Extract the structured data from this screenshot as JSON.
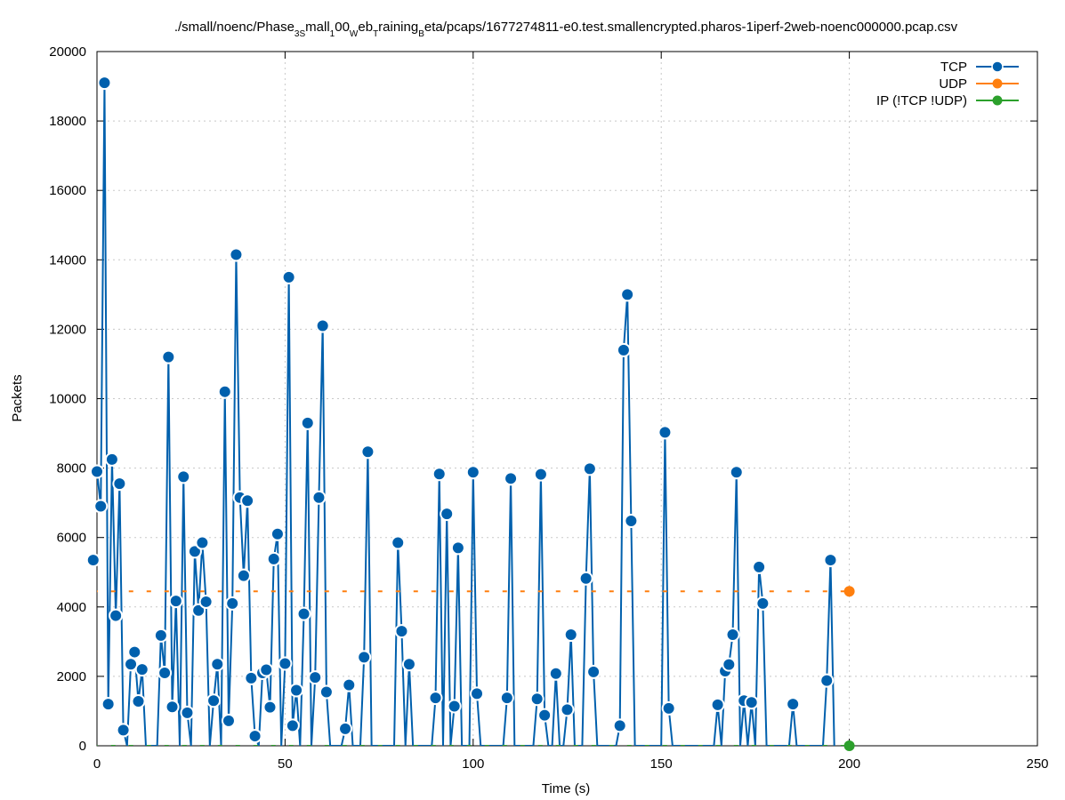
{
  "chart_data": {
    "type": "line",
    "title": "./small/noenc/Phase3Small100WebTrainingBeta/pcaps/1677274811-e0.test.smallencrypted.pharos-1iperf-2web-noenc000000.pcap.csv",
    "title_parts": {
      "t1": "./small/noenc/Phase",
      "s1": "3S",
      "t2": "mall",
      "s2": "1",
      "t3": "00",
      "s3": "W",
      "t4": "eb",
      "s4": "T",
      "t5": "raining",
      "s5": "B",
      "t6": "eta/pcaps/1677274811-e0.test.smallencrypted.pharos-1iperf-2web-noenc000000.pcap.csv"
    },
    "xlabel": "Time (s)",
    "ylabel": "Packets",
    "xlim": [
      0,
      250
    ],
    "ylim": [
      0,
      20000
    ],
    "xticks": [
      0,
      50,
      100,
      150,
      200,
      250
    ],
    "yticks": [
      0,
      2000,
      4000,
      6000,
      8000,
      10000,
      12000,
      14000,
      16000,
      18000,
      20000
    ],
    "grid": true,
    "legend_position": "top-right",
    "series": [
      {
        "name": "TCP",
        "color": "#0060ad",
        "style": "line-points",
        "points": [
          [
            -1,
            5350
          ],
          [
            0,
            7900
          ],
          [
            1,
            6900
          ],
          [
            2,
            19100
          ],
          [
            3,
            1200
          ],
          [
            4,
            8250
          ],
          [
            5,
            3750
          ],
          [
            6,
            7550
          ],
          [
            7,
            450
          ],
          [
            8,
            0
          ],
          [
            9,
            2350
          ],
          [
            10,
            2700
          ],
          [
            11,
            1280
          ],
          [
            12,
            2200
          ],
          [
            13,
            0
          ],
          [
            14,
            0
          ],
          [
            15,
            0
          ],
          [
            16,
            0
          ],
          [
            17,
            3180
          ],
          [
            18,
            2100
          ],
          [
            19,
            11200
          ],
          [
            20,
            1120
          ],
          [
            21,
            4170
          ],
          [
            22,
            0
          ],
          [
            23,
            7750
          ],
          [
            24,
            950
          ],
          [
            25,
            0
          ],
          [
            26,
            5600
          ],
          [
            27,
            3900
          ],
          [
            28,
            5850
          ],
          [
            29,
            4150
          ],
          [
            30,
            0
          ],
          [
            31,
            1300
          ],
          [
            32,
            2350
          ],
          [
            33,
            0
          ],
          [
            34,
            10200
          ],
          [
            35,
            720
          ],
          [
            36,
            4100
          ],
          [
            37,
            14150
          ],
          [
            38,
            7150
          ],
          [
            39,
            4900
          ],
          [
            40,
            7060
          ],
          [
            41,
            1950
          ],
          [
            42,
            280
          ],
          [
            43,
            0
          ],
          [
            44,
            2100
          ],
          [
            45,
            2190
          ],
          [
            46,
            1110
          ],
          [
            47,
            5380
          ],
          [
            48,
            6100
          ],
          [
            49,
            0
          ],
          [
            50,
            2370
          ],
          [
            51,
            13500
          ],
          [
            52,
            580
          ],
          [
            53,
            1600
          ],
          [
            54,
            0
          ],
          [
            55,
            3800
          ],
          [
            56,
            9300
          ],
          [
            57,
            0
          ],
          [
            58,
            1970
          ],
          [
            59,
            7150
          ],
          [
            60,
            12100
          ],
          [
            61,
            1550
          ],
          [
            62,
            0
          ],
          [
            63,
            0
          ],
          [
            64,
            0
          ],
          [
            65,
            0
          ],
          [
            66,
            490
          ],
          [
            67,
            1750
          ],
          [
            68,
            0
          ],
          [
            69,
            0
          ],
          [
            70,
            0
          ],
          [
            71,
            2550
          ],
          [
            72,
            8470
          ],
          [
            73,
            0
          ],
          [
            74,
            0
          ],
          [
            75,
            0
          ],
          [
            76,
            0
          ],
          [
            77,
            0
          ],
          [
            78,
            0
          ],
          [
            79,
            0
          ],
          [
            80,
            5850
          ],
          [
            81,
            3300
          ],
          [
            82,
            0
          ],
          [
            83,
            2350
          ],
          [
            84,
            0
          ],
          [
            85,
            0
          ],
          [
            86,
            0
          ],
          [
            87,
            0
          ],
          [
            88,
            0
          ],
          [
            89,
            0
          ],
          [
            90,
            1380
          ],
          [
            91,
            7830
          ],
          [
            92,
            0
          ],
          [
            93,
            6680
          ],
          [
            94,
            0
          ],
          [
            95,
            1140
          ],
          [
            96,
            5700
          ],
          [
            97,
            0
          ],
          [
            98,
            0
          ],
          [
            99,
            0
          ],
          [
            100,
            7880
          ],
          [
            101,
            1500
          ],
          [
            102,
            0
          ],
          [
            103,
            0
          ],
          [
            104,
            0
          ],
          [
            105,
            0
          ],
          [
            106,
            0
          ],
          [
            107,
            0
          ],
          [
            108,
            0
          ],
          [
            109,
            1380
          ],
          [
            110,
            7700
          ],
          [
            111,
            0
          ],
          [
            112,
            0
          ],
          [
            113,
            0
          ],
          [
            114,
            0
          ],
          [
            115,
            0
          ],
          [
            116,
            0
          ],
          [
            117,
            1350
          ],
          [
            118,
            7820
          ],
          [
            119,
            880
          ],
          [
            120,
            0
          ],
          [
            121,
            0
          ],
          [
            122,
            2080
          ],
          [
            123,
            0
          ],
          [
            124,
            0
          ],
          [
            125,
            1040
          ],
          [
            126,
            3200
          ],
          [
            127,
            0
          ],
          [
            128,
            0
          ],
          [
            129,
            0
          ],
          [
            130,
            4820
          ],
          [
            131,
            7980
          ],
          [
            132,
            2130
          ],
          [
            133,
            0
          ],
          [
            134,
            0
          ],
          [
            135,
            0
          ],
          [
            136,
            0
          ],
          [
            137,
            0
          ],
          [
            138,
            0
          ],
          [
            139,
            580
          ],
          [
            140,
            11400
          ],
          [
            141,
            13000
          ],
          [
            142,
            6480
          ],
          [
            143,
            0
          ],
          [
            144,
            0
          ],
          [
            145,
            0
          ],
          [
            146,
            0
          ],
          [
            147,
            0
          ],
          [
            148,
            0
          ],
          [
            149,
            0
          ],
          [
            150,
            0
          ],
          [
            151,
            9030
          ],
          [
            152,
            1080
          ],
          [
            153,
            0
          ],
          [
            154,
            0
          ],
          [
            155,
            0
          ],
          [
            156,
            0
          ],
          [
            157,
            0
          ],
          [
            158,
            0
          ],
          [
            159,
            0
          ],
          [
            160,
            0
          ],
          [
            161,
            0
          ],
          [
            162,
            0
          ],
          [
            163,
            0
          ],
          [
            164,
            0
          ],
          [
            165,
            1180
          ],
          [
            166,
            0
          ],
          [
            167,
            2150
          ],
          [
            168,
            2340
          ],
          [
            169,
            3200
          ],
          [
            170,
            7880
          ],
          [
            171,
            0
          ],
          [
            172,
            1300
          ],
          [
            173,
            0
          ],
          [
            174,
            1250
          ],
          [
            175,
            0
          ],
          [
            176,
            5150
          ],
          [
            177,
            4100
          ],
          [
            178,
            0
          ],
          [
            179,
            0
          ],
          [
            180,
            0
          ],
          [
            181,
            0
          ],
          [
            182,
            0
          ],
          [
            183,
            0
          ],
          [
            184,
            0
          ],
          [
            185,
            1200
          ],
          [
            186,
            0
          ],
          [
            187,
            0
          ],
          [
            188,
            0
          ],
          [
            189,
            0
          ],
          [
            190,
            0
          ],
          [
            191,
            0
          ],
          [
            192,
            0
          ],
          [
            193,
            0
          ],
          [
            194,
            1880
          ],
          [
            195,
            5350
          ],
          [
            196,
            0
          ]
        ]
      },
      {
        "name": "UDP",
        "color": "#ff7f0e",
        "style": "dashed-line-points",
        "constant_value": 4450,
        "x_range": [
          -1,
          200
        ],
        "marker_x": 200
      },
      {
        "name": "IP (!TCP  !UDP)",
        "color": "#2ca02c",
        "style": "dashed-line-points",
        "constant_value": 0,
        "x_range": [
          -1,
          200
        ],
        "marker_x": 200
      }
    ]
  }
}
